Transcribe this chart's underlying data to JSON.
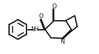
{
  "bg_color": "#ffffff",
  "line_color": "#1a1a1a",
  "lw": 1.3,
  "text_color": "#1a1a1a",
  "figsize": [
    1.42,
    0.78
  ],
  "dpi": 100,
  "xlim": [
    0,
    10
  ],
  "ylim": [
    0,
    5.5
  ]
}
